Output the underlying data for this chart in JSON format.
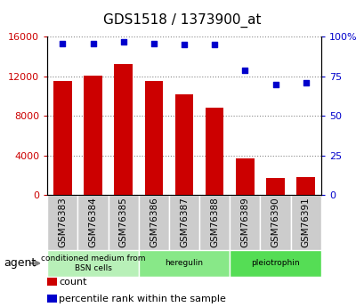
{
  "title": "GDS1518 / 1373900_at",
  "categories": [
    "GSM76383",
    "GSM76384",
    "GSM76385",
    "GSM76386",
    "GSM76387",
    "GSM76388",
    "GSM76389",
    "GSM76390",
    "GSM76391"
  ],
  "counts": [
    11500,
    12100,
    13200,
    11500,
    10200,
    8800,
    3700,
    1700,
    1800
  ],
  "percentiles": [
    96,
    96,
    97,
    96,
    95,
    95,
    79,
    70,
    71
  ],
  "groups": [
    {
      "label": "conditioned medium from\nBSN cells",
      "start": 0,
      "end": 3,
      "color": "#b8f0b8"
    },
    {
      "label": "heregulin",
      "start": 3,
      "end": 6,
      "color": "#88e888"
    },
    {
      "label": "pleiotrophin",
      "start": 6,
      "end": 9,
      "color": "#55dd55"
    }
  ],
  "ylim_left": [
    0,
    16000
  ],
  "ylim_right": [
    0,
    100
  ],
  "yticks_left": [
    0,
    4000,
    8000,
    12000,
    16000
  ],
  "ytick_labels_left": [
    "0",
    "4000",
    "8000",
    "12000",
    "16000"
  ],
  "yticks_right": [
    0,
    25,
    50,
    75,
    100
  ],
  "ytick_labels_right": [
    "0",
    "25",
    "50",
    "75",
    "100%"
  ],
  "bar_color": "#cc0000",
  "dot_color": "#0000cc",
  "bar_width": 0.6,
  "grid_color": "#888888",
  "bg_color": "#ffffff",
  "sample_box_color": "#cccccc",
  "agent_label": "agent",
  "legend_items": [
    {
      "label": "count",
      "color": "#cc0000"
    },
    {
      "label": "percentile rank within the sample",
      "color": "#0000cc"
    }
  ]
}
